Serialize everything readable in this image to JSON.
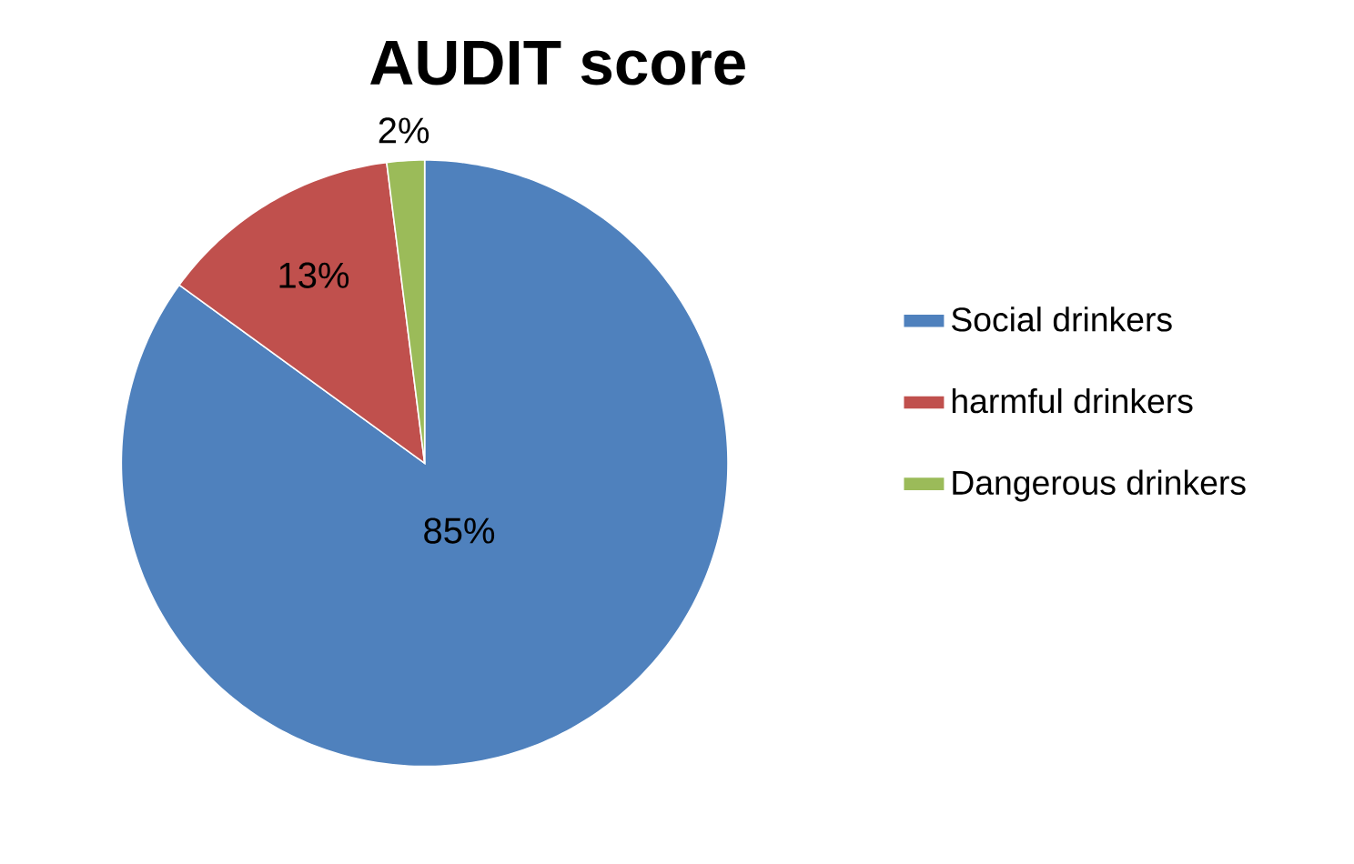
{
  "chart_data": {
    "type": "pie",
    "title": "AUDIT score",
    "categories": [
      "Social drinkers",
      "harmful drinkers",
      "Dangerous drinkers"
    ],
    "values": [
      85,
      13,
      2
    ],
    "colors": [
      "#4f81bd",
      "#c0504d",
      "#9bbb59"
    ],
    "value_labels": [
      "85%",
      "13%",
      "2%"
    ],
    "legend": "right"
  }
}
